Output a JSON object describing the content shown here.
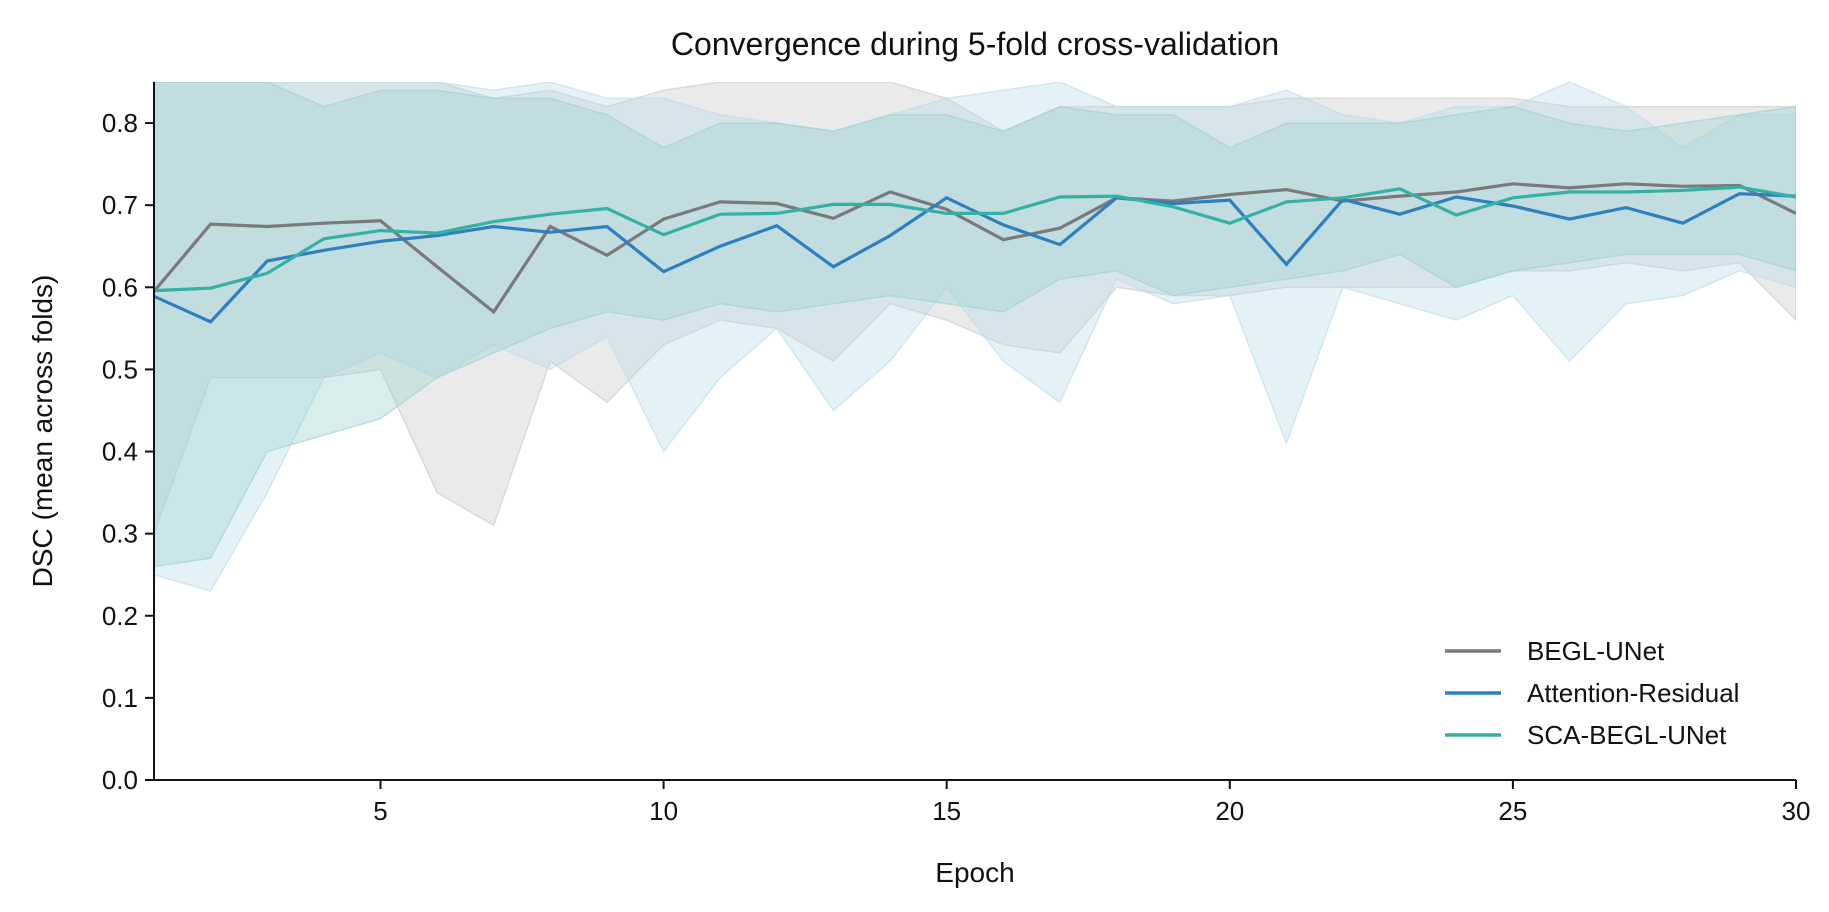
{
  "chart_data": {
    "type": "line",
    "title": "Convergence during 5-fold cross-validation",
    "xlabel": "Epoch",
    "ylabel": "DSC (mean across folds)",
    "xlim": [
      1,
      30
    ],
    "ylim": [
      0.0,
      0.85
    ],
    "xticks": [
      5,
      10,
      15,
      20,
      25,
      30
    ],
    "yticks": [
      0.0,
      0.1,
      0.2,
      0.3,
      0.4,
      0.5,
      0.6,
      0.7,
      0.8
    ],
    "ytick_labels": [
      "0.0",
      "0.1",
      "0.2",
      "0.3",
      "0.4",
      "0.5",
      "0.6",
      "0.7",
      "0.8"
    ],
    "grid": false,
    "legend_position": "lower-right",
    "x": [
      1,
      2,
      3,
      4,
      5,
      6,
      7,
      8,
      9,
      10,
      11,
      12,
      13,
      14,
      15,
      16,
      17,
      18,
      19,
      20,
      21,
      22,
      23,
      24,
      25,
      26,
      27,
      28,
      29,
      30
    ],
    "series": [
      {
        "name": "BEGL-UNet",
        "color": "#7a7a7a",
        "band_color": "#c8c8c8",
        "values": [
          0.595,
          0.677,
          0.674,
          0.678,
          0.681,
          0.625,
          0.57,
          0.674,
          0.639,
          0.683,
          0.704,
          0.702,
          0.684,
          0.716,
          0.695,
          0.658,
          0.672,
          0.709,
          0.705,
          0.713,
          0.719,
          0.705,
          0.711,
          0.716,
          0.726,
          0.721,
          0.726,
          0.723,
          0.724,
          0.69
        ],
        "lower": [
          0.3,
          0.49,
          0.49,
          0.49,
          0.5,
          0.35,
          0.31,
          0.51,
          0.46,
          0.53,
          0.56,
          0.55,
          0.51,
          0.58,
          0.56,
          0.53,
          0.52,
          0.6,
          0.59,
          0.59,
          0.6,
          0.6,
          0.6,
          0.6,
          0.62,
          0.62,
          0.63,
          0.62,
          0.63,
          0.56
        ],
        "upper": [
          0.85,
          0.85,
          0.85,
          0.85,
          0.85,
          0.85,
          0.83,
          0.84,
          0.82,
          0.84,
          0.85,
          0.85,
          0.85,
          0.85,
          0.83,
          0.79,
          0.82,
          0.82,
          0.82,
          0.82,
          0.83,
          0.83,
          0.83,
          0.83,
          0.83,
          0.82,
          0.82,
          0.82,
          0.82,
          0.82
        ]
      },
      {
        "name": "Attention-Residual",
        "color": "#2e7fbf",
        "band_color": "#b7dced",
        "values": [
          0.589,
          0.558,
          0.632,
          0.645,
          0.656,
          0.663,
          0.674,
          0.667,
          0.674,
          0.619,
          0.65,
          0.675,
          0.625,
          0.663,
          0.709,
          0.676,
          0.652,
          0.709,
          0.702,
          0.706,
          0.628,
          0.707,
          0.689,
          0.71,
          0.699,
          0.683,
          0.697,
          0.678,
          0.714,
          0.711
        ],
        "lower": [
          0.25,
          0.23,
          0.35,
          0.49,
          0.52,
          0.49,
          0.53,
          0.5,
          0.54,
          0.4,
          0.49,
          0.55,
          0.45,
          0.51,
          0.6,
          0.51,
          0.46,
          0.61,
          0.58,
          0.59,
          0.41,
          0.6,
          0.58,
          0.56,
          0.59,
          0.51,
          0.58,
          0.59,
          0.62,
          0.6
        ],
        "upper": [
          0.85,
          0.85,
          0.85,
          0.85,
          0.85,
          0.85,
          0.84,
          0.85,
          0.83,
          0.83,
          0.81,
          0.8,
          0.79,
          0.81,
          0.83,
          0.84,
          0.85,
          0.82,
          0.82,
          0.82,
          0.84,
          0.81,
          0.8,
          0.82,
          0.82,
          0.85,
          0.82,
          0.77,
          0.81,
          0.81
        ]
      },
      {
        "name": "SCA-BEGL-UNet",
        "color": "#35b1a4",
        "band_color": "#9fd0cf",
        "values": [
          0.596,
          0.599,
          0.617,
          0.659,
          0.669,
          0.666,
          0.68,
          0.689,
          0.696,
          0.664,
          0.689,
          0.69,
          0.701,
          0.701,
          0.69,
          0.69,
          0.71,
          0.711,
          0.698,
          0.678,
          0.704,
          0.709,
          0.72,
          0.688,
          0.709,
          0.716,
          0.716,
          0.718,
          0.722,
          0.71
        ],
        "lower": [
          0.26,
          0.27,
          0.4,
          0.42,
          0.44,
          0.49,
          0.52,
          0.55,
          0.57,
          0.56,
          0.58,
          0.57,
          0.58,
          0.59,
          0.58,
          0.57,
          0.61,
          0.62,
          0.59,
          0.6,
          0.61,
          0.62,
          0.64,
          0.6,
          0.62,
          0.63,
          0.64,
          0.64,
          0.64,
          0.62
        ],
        "upper": [
          0.85,
          0.85,
          0.85,
          0.82,
          0.84,
          0.84,
          0.83,
          0.83,
          0.81,
          0.77,
          0.8,
          0.8,
          0.79,
          0.81,
          0.81,
          0.79,
          0.82,
          0.81,
          0.81,
          0.77,
          0.8,
          0.8,
          0.8,
          0.81,
          0.82,
          0.8,
          0.79,
          0.8,
          0.81,
          0.82
        ]
      }
    ]
  }
}
